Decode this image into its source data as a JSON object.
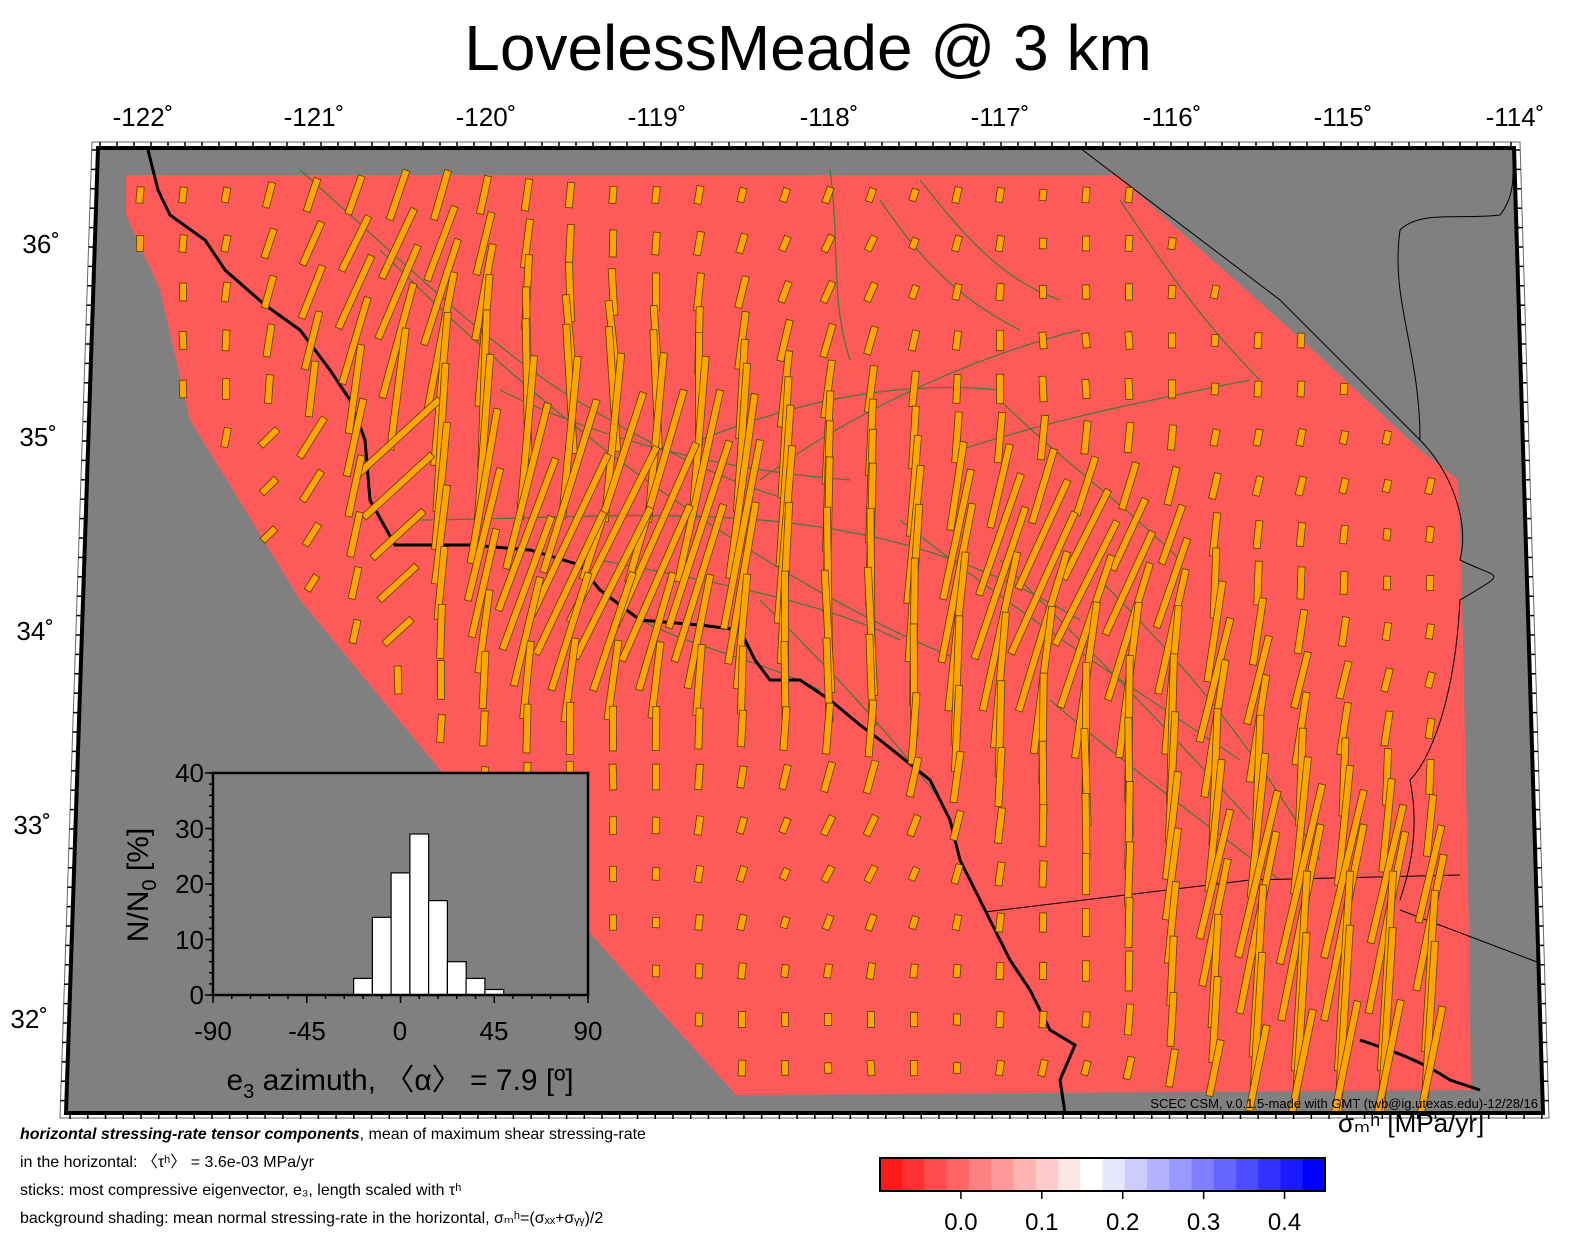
{
  "title": "LovelessMeade @ 3 km",
  "map": {
    "lon_ticks": [
      "-122˚",
      "-121˚",
      "-120˚",
      "-119˚",
      "-118˚",
      "-117˚",
      "-116˚",
      "-115˚",
      "-114˚"
    ],
    "lat_ticks": [
      "36˚",
      "35˚",
      "34˚",
      "33˚",
      "32˚"
    ],
    "lon_range": [
      -122.3,
      -114.0
    ],
    "lat_range": [
      31.5,
      36.5
    ],
    "credit": "SCEC CSM, v.0.1.5-made with GMT (twb@ig.utexas.edu)-12/28/16",
    "colors": {
      "background_shading": "#ff5a5a",
      "outside_domain": "#808080",
      "sticks": "#ffa500",
      "faults": "#2e7d32",
      "coastline": "#000000"
    }
  },
  "histogram": {
    "ylabel_main": "N/N",
    "ylabel_sub": "0",
    "ylabel_unit": " [%]",
    "xlabel_main": "e",
    "xlabel_sub": "3",
    "xlabel_rest": " azimuth, 〈α〉 = 7.9 [º]",
    "x_ticks": [
      "-90",
      "-45",
      "0",
      "45",
      "90"
    ],
    "y_ticks": [
      "40",
      "30",
      "20",
      "10",
      "0"
    ],
    "xlim": [
      -90,
      90
    ],
    "ylim": [
      0,
      40
    ],
    "bins": [
      {
        "from": -22.5,
        "to": -13.5,
        "pct": 3
      },
      {
        "from": -13.5,
        "to": -4.5,
        "pct": 14
      },
      {
        "from": -4.5,
        "to": 4.5,
        "pct": 22
      },
      {
        "from": 4.5,
        "to": 13.5,
        "pct": 29
      },
      {
        "from": 13.5,
        "to": 22.5,
        "pct": 17
      },
      {
        "from": 22.5,
        "to": 31.5,
        "pct": 6
      },
      {
        "from": 31.5,
        "to": 40.5,
        "pct": 3
      },
      {
        "from": 40.5,
        "to": 49.5,
        "pct": 1
      }
    ]
  },
  "caption": {
    "line1_bold": "horizontal stressing-rate tensor components",
    "line1_rest": ", mean of maximum shear stressing-rate",
    "line2": "in the horizontal: 〈τʰ〉 = 3.6e-03 MPa/yr",
    "line3": "sticks: most compressive eigenvector, e₃, length scaled with τʰ",
    "line4": "background shading: mean normal stressing-rate in the horizontal, σₘʰ=(σₓₓ+σᵧᵧ)/2"
  },
  "colorbar": {
    "unit_label": "σₘʰ [MPa/yr]",
    "range": [
      -0.1,
      0.45
    ],
    "tick_labels": [
      "0.0",
      "0.1",
      "0.2",
      "0.3",
      "0.4"
    ],
    "tick_values": [
      0.0,
      0.1,
      0.2,
      0.3,
      0.4
    ],
    "colors": [
      "#ff1a1a",
      "#ff3333",
      "#ff4d4d",
      "#ff6666",
      "#ff8080",
      "#ff9999",
      "#ffb3b3",
      "#ffcccc",
      "#ffe6e6",
      "#ffffff",
      "#e6e6ff",
      "#ccccff",
      "#b3b3ff",
      "#9999ff",
      "#8080ff",
      "#6666ff",
      "#4d4dff",
      "#3333ff",
      "#1a1aff",
      "#0000ff"
    ]
  }
}
